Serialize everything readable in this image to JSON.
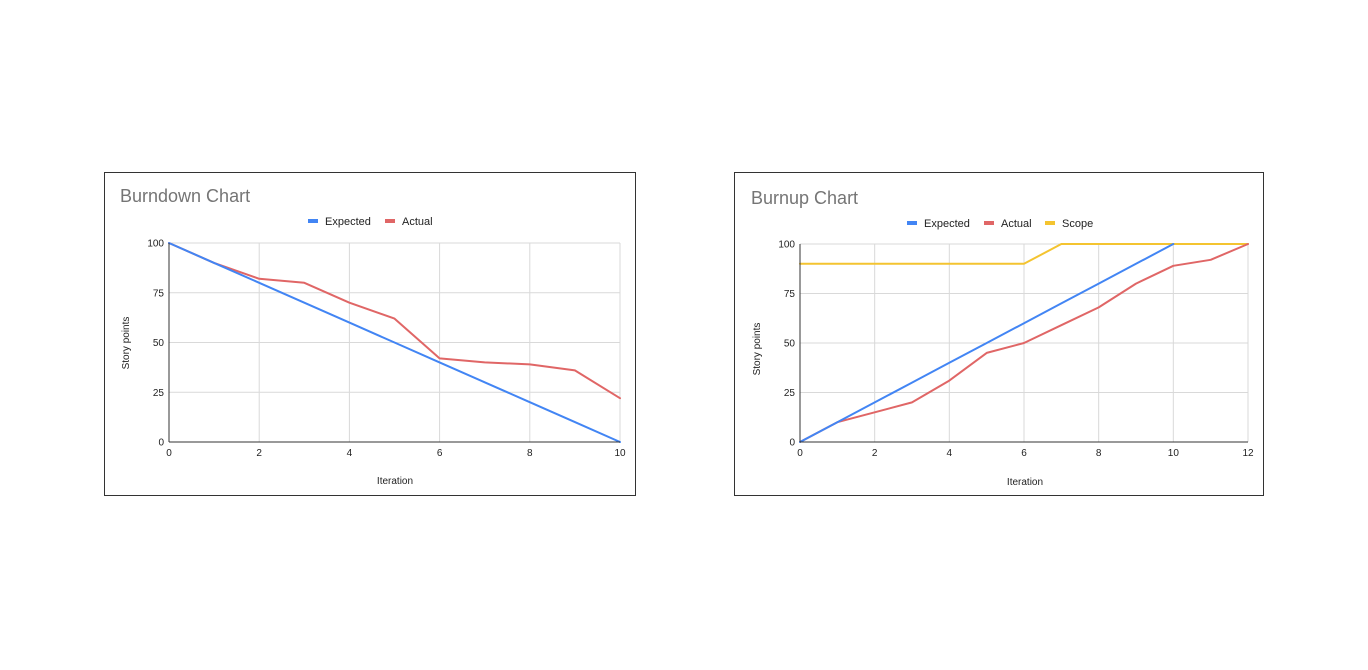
{
  "chart_data": [
    {
      "type": "line",
      "title": "Burndown Chart",
      "xlabel": "Iteration",
      "ylabel": "Story points",
      "xlim": [
        0,
        10
      ],
      "ylim": [
        0,
        100
      ],
      "xticks": [
        0,
        2,
        4,
        6,
        8,
        10
      ],
      "yticks": [
        0,
        25,
        50,
        75,
        100
      ],
      "grid": true,
      "legend_position": "top",
      "x": [
        0,
        1,
        2,
        3,
        4,
        5,
        6,
        7,
        8,
        9,
        10
      ],
      "series": [
        {
          "name": "Expected",
          "color": "#4285F4",
          "values": [
            100,
            90,
            80,
            70,
            60,
            50,
            40,
            30,
            20,
            10,
            0
          ]
        },
        {
          "name": "Actual",
          "color": "#E06666",
          "values": [
            100,
            90,
            82,
            80,
            70,
            62,
            42,
            40,
            39,
            36,
            22
          ]
        }
      ]
    },
    {
      "type": "line",
      "title": "Burnup Chart",
      "xlabel": "Iteration",
      "ylabel": "Story points",
      "xlim": [
        0,
        12
      ],
      "ylim": [
        0,
        100
      ],
      "xticks": [
        0,
        2,
        4,
        6,
        8,
        10,
        12
      ],
      "yticks": [
        0,
        25,
        50,
        75,
        100
      ],
      "grid": true,
      "legend_position": "top",
      "series": [
        {
          "name": "Expected",
          "color": "#4285F4",
          "x": [
            0,
            1,
            2,
            3,
            4,
            5,
            6,
            7,
            8,
            9,
            10
          ],
          "values": [
            0,
            10,
            20,
            30,
            40,
            50,
            60,
            70,
            80,
            90,
            100
          ]
        },
        {
          "name": "Actual",
          "color": "#E06666",
          "x": [
            0,
            1,
            2,
            3,
            4,
            5,
            6,
            7,
            8,
            9,
            10,
            11,
            12
          ],
          "values": [
            0,
            10,
            15,
            20,
            31,
            45,
            50,
            59,
            68,
            80,
            89,
            92,
            100
          ]
        },
        {
          "name": "Scope",
          "color": "#F4C430",
          "x": [
            0,
            1,
            2,
            3,
            4,
            5,
            6,
            7,
            8,
            9,
            10,
            11,
            12
          ],
          "values": [
            90,
            90,
            90,
            90,
            90,
            90,
            90,
            100,
            100,
            100,
            100,
            100,
            100
          ]
        }
      ]
    }
  ]
}
